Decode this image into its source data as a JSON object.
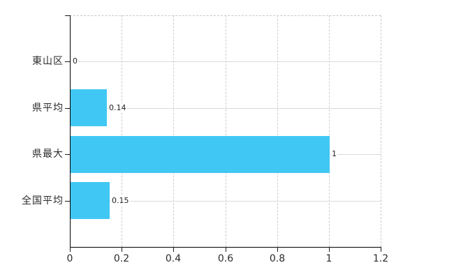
{
  "chart_data": {
    "type": "bar",
    "orientation": "horizontal",
    "title": "",
    "xlabel": "",
    "ylabel": "",
    "categories": [
      "東山区",
      "県平均",
      "県最大",
      "全国平均"
    ],
    "values": [
      0,
      0.14,
      1,
      0.15
    ],
    "value_labels": [
      "0",
      "0.14",
      "1",
      "0.15"
    ],
    "x_ticks": [
      0,
      0.2,
      0.4,
      0.6,
      0.8,
      1,
      1.2
    ],
    "x_tick_labels": [
      "0",
      "0.2",
      "0.4",
      "0.6",
      "0.8",
      "1",
      "1.2"
    ],
    "xlim": [
      0,
      1.2
    ],
    "grid": true,
    "legend": false,
    "bar_color": "#41c7f3",
    "h_grid_color": "#d6ded6",
    "v_grid_color": "#ccccd4",
    "border_dash_color": "#c9c6ce",
    "axis_color": "#000000",
    "text_color": "#2b2b2b"
  }
}
